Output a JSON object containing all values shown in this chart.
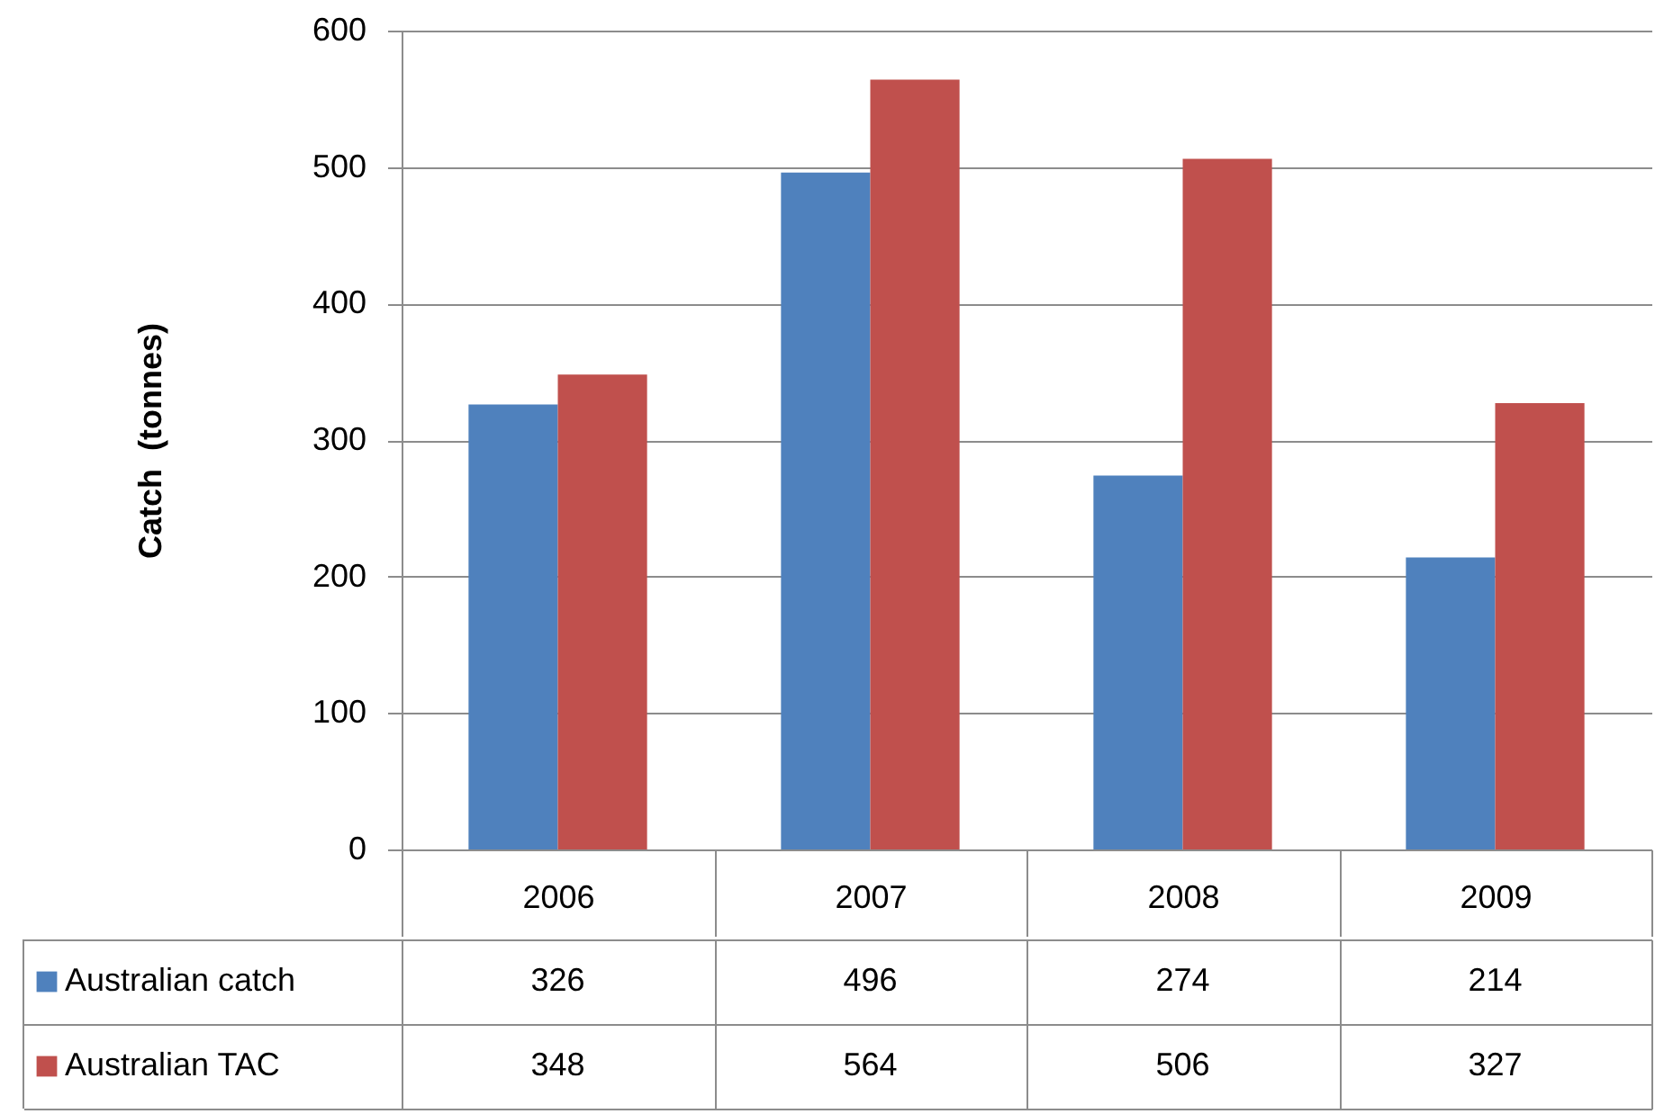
{
  "chart_data": {
    "type": "bar",
    "ylabel": "Catch  (tonnes)",
    "categories": [
      "2006",
      "2007",
      "2008",
      "2009"
    ],
    "series": [
      {
        "name": "Australian catch",
        "color": "#4f81bd",
        "values": [
          326,
          496,
          274,
          214
        ]
      },
      {
        "name": "Australian TAC",
        "color": "#c0504d",
        "values": [
          348,
          564,
          506,
          327
        ]
      }
    ],
    "ylim": [
      0,
      600
    ],
    "yticks": [
      0,
      100,
      200,
      300,
      400,
      500,
      600
    ],
    "grid": "y",
    "legend": "bottom left",
    "data_labels": true
  }
}
